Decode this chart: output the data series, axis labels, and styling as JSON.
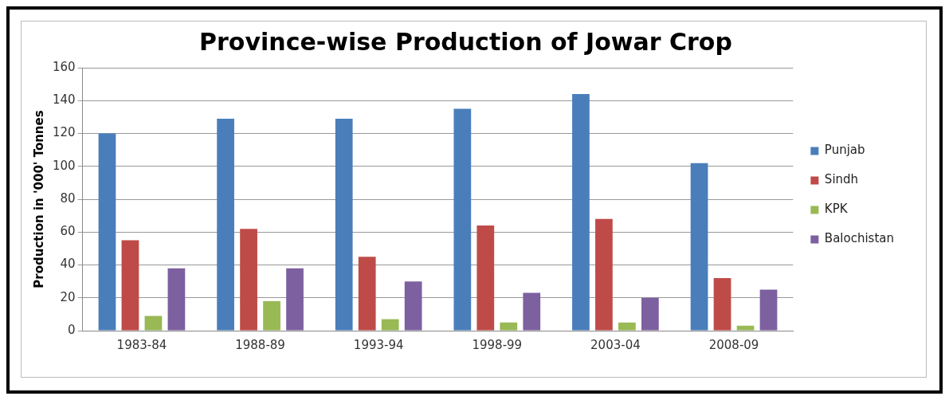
{
  "chart_data": {
    "type": "bar",
    "title": "Province-wise Production of Jowar Crop",
    "ylabel": "Production in '000' Tonnes",
    "categories": [
      "1983-84",
      "1988-89",
      "1993-94",
      "1998-99",
      "2003-04",
      "2008-09"
    ],
    "series": [
      {
        "name": "Punjab",
        "color": "#4a7ebb",
        "values": [
          120,
          129,
          129,
          135,
          144,
          102
        ]
      },
      {
        "name": "Sindh",
        "color": "#be4b48",
        "values": [
          55,
          62,
          45,
          64,
          68,
          32
        ]
      },
      {
        "name": "KPK",
        "color": "#98b954",
        "values": [
          9,
          18,
          7,
          5,
          5,
          3
        ]
      },
      {
        "name": "Balochistan",
        "color": "#7d60a0",
        "values": [
          38,
          38,
          30,
          23,
          20,
          25
        ]
      }
    ],
    "ylim": [
      0,
      160
    ],
    "yticks": [
      0,
      20,
      40,
      60,
      80,
      100,
      120,
      140,
      160
    ],
    "grid": "y",
    "legend": "right"
  }
}
